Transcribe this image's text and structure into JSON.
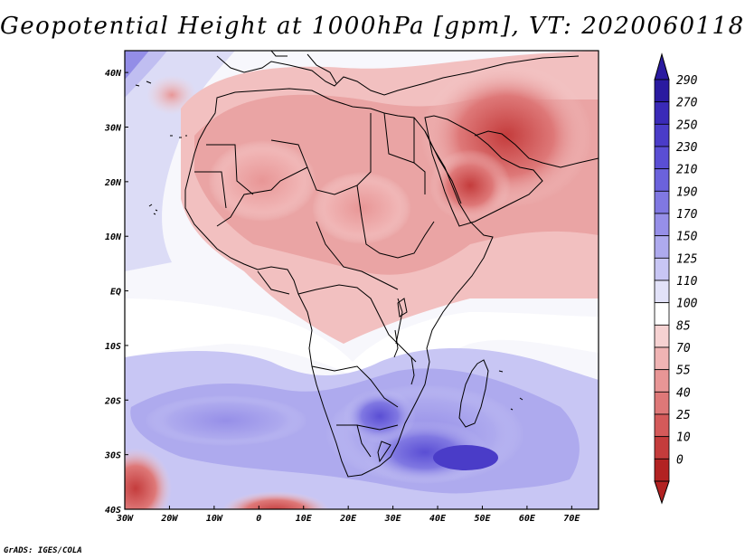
{
  "title": "Geopotential Height at 1000hPa [gpm], VT: 2020060118",
  "footer": "GrADS: IGES/COLA",
  "map": {
    "region": "Africa",
    "lon_range": [
      -30,
      76
    ],
    "lat_range": [
      -40,
      44
    ],
    "x_ticks": [
      "30W",
      "20W",
      "10W",
      "0",
      "10E",
      "20E",
      "30E",
      "40E",
      "50E",
      "60E",
      "70E"
    ],
    "y_ticks": [
      "40N",
      "30N",
      "20N",
      "10N",
      "EQ",
      "10S",
      "20S",
      "30S",
      "40S"
    ]
  },
  "colorbar": {
    "labels": [
      "290",
      "270",
      "250",
      "230",
      "210",
      "190",
      "170",
      "150",
      "125",
      "110",
      "100",
      "85",
      "70",
      "55",
      "40",
      "25",
      "10",
      "0"
    ],
    "colors": [
      "#2a1aa0",
      "#3a2ab8",
      "#4a3cc8",
      "#5a4ed4",
      "#6b62dc",
      "#8078e2",
      "#968fe8",
      "#aeaaee",
      "#c8c6f4",
      "#e2e2f8",
      "#ffffff",
      "#f6d2d2",
      "#f0b4b4",
      "#e89696",
      "#de7878",
      "#d45a5a",
      "#c43c3c",
      "#b22222"
    ]
  }
}
